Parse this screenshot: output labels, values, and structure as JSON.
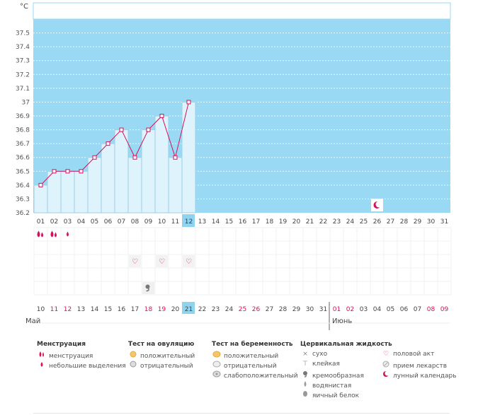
{
  "chart_data": {
    "type": "line",
    "unit_label": "°C",
    "y_ticks": [
      "37.5",
      "37.4",
      "37.3",
      "37.2",
      "37.1",
      "37",
      "36.9",
      "36.8",
      "36.7",
      "36.6",
      "36.5",
      "36.4",
      "36.3",
      "36.2"
    ],
    "ylim": [
      36.2,
      37.6
    ],
    "cycle_days": [
      "01",
      "02",
      "03",
      "04",
      "05",
      "06",
      "07",
      "08",
      "09",
      "10",
      "11",
      "12",
      "13",
      "14",
      "15",
      "16",
      "17",
      "18",
      "19",
      "20",
      "21",
      "22",
      "23",
      "24",
      "25",
      "26",
      "27",
      "28",
      "29",
      "30",
      "31"
    ],
    "temperatures": [
      36.4,
      36.5,
      36.5,
      36.5,
      36.6,
      36.7,
      36.8,
      36.6,
      36.8,
      36.9,
      36.6,
      37.0
    ],
    "current_day_index": 11,
    "moon_day_index": 25,
    "calendar_dates": [
      "10",
      "11",
      "12",
      "13",
      "14",
      "15",
      "16",
      "17",
      "18",
      "19",
      "20",
      "21",
      "22",
      "23",
      "24",
      "25",
      "26",
      "27",
      "28",
      "29",
      "30",
      "31",
      "01",
      "02",
      "03",
      "04",
      "05",
      "06",
      "07",
      "08",
      "09"
    ],
    "highlighted_date_indices": [
      1,
      2,
      8,
      9,
      15,
      16,
      22,
      23,
      29,
      30
    ],
    "current_date_index": 11,
    "month_start_label": "Май",
    "month_change_label": "Июнь",
    "month_change_index": 22,
    "menstruation_icons": [
      {
        "day": 0,
        "kind": "heavy"
      },
      {
        "day": 1,
        "kind": "heavy"
      },
      {
        "day": 2,
        "kind": "light"
      }
    ],
    "intercourse_days": [
      7,
      9,
      11
    ],
    "cervical_days": [
      8
    ]
  },
  "colors": {
    "plot_bg": "#99d9f4",
    "bar_fill": "#dff3fc",
    "bar_stroke": "#9ccfe6",
    "line": "#d2125b",
    "highlight_text": "#d2125b",
    "current_day": "#8fd3ef"
  },
  "legend": {
    "menstruation": {
      "title": "Менструация",
      "items": [
        {
          "icon": "heavy-drop-icon",
          "label": "менструация"
        },
        {
          "icon": "light-drop-icon",
          "label": "небольшие выделения"
        }
      ]
    },
    "ovulation_test": {
      "title": "Тест на овуляцию",
      "items": [
        {
          "icon": "ovulation-positive-icon",
          "label": "положительный"
        },
        {
          "icon": "ovulation-negative-icon",
          "label": "отрицательный"
        }
      ]
    },
    "pregnancy_test": {
      "title": "Тест на беременность",
      "items": [
        {
          "icon": "pregnancy-positive-icon",
          "label": "положительный"
        },
        {
          "icon": "pregnancy-negative-icon",
          "label": "отрицательный"
        },
        {
          "icon": "pregnancy-weak-icon",
          "label": "слабоположительный"
        }
      ]
    },
    "cervical": {
      "title": "Цервикальная жидкость",
      "items": [
        {
          "icon": "dry-icon",
          "label": "сухо"
        },
        {
          "icon": "sticky-icon",
          "label": "клейкая"
        },
        {
          "icon": "creamy-icon",
          "label": "кремообразная"
        },
        {
          "icon": "watery-icon",
          "label": "водянистая"
        },
        {
          "icon": "egg-white-icon",
          "label": "яичный белок"
        }
      ]
    },
    "other": {
      "items": [
        {
          "icon": "heart-icon",
          "label": "половой акт"
        },
        {
          "icon": "pill-icon",
          "label": "прием лекарств"
        },
        {
          "icon": "moon-icon",
          "label": "лунный календарь"
        }
      ]
    }
  }
}
